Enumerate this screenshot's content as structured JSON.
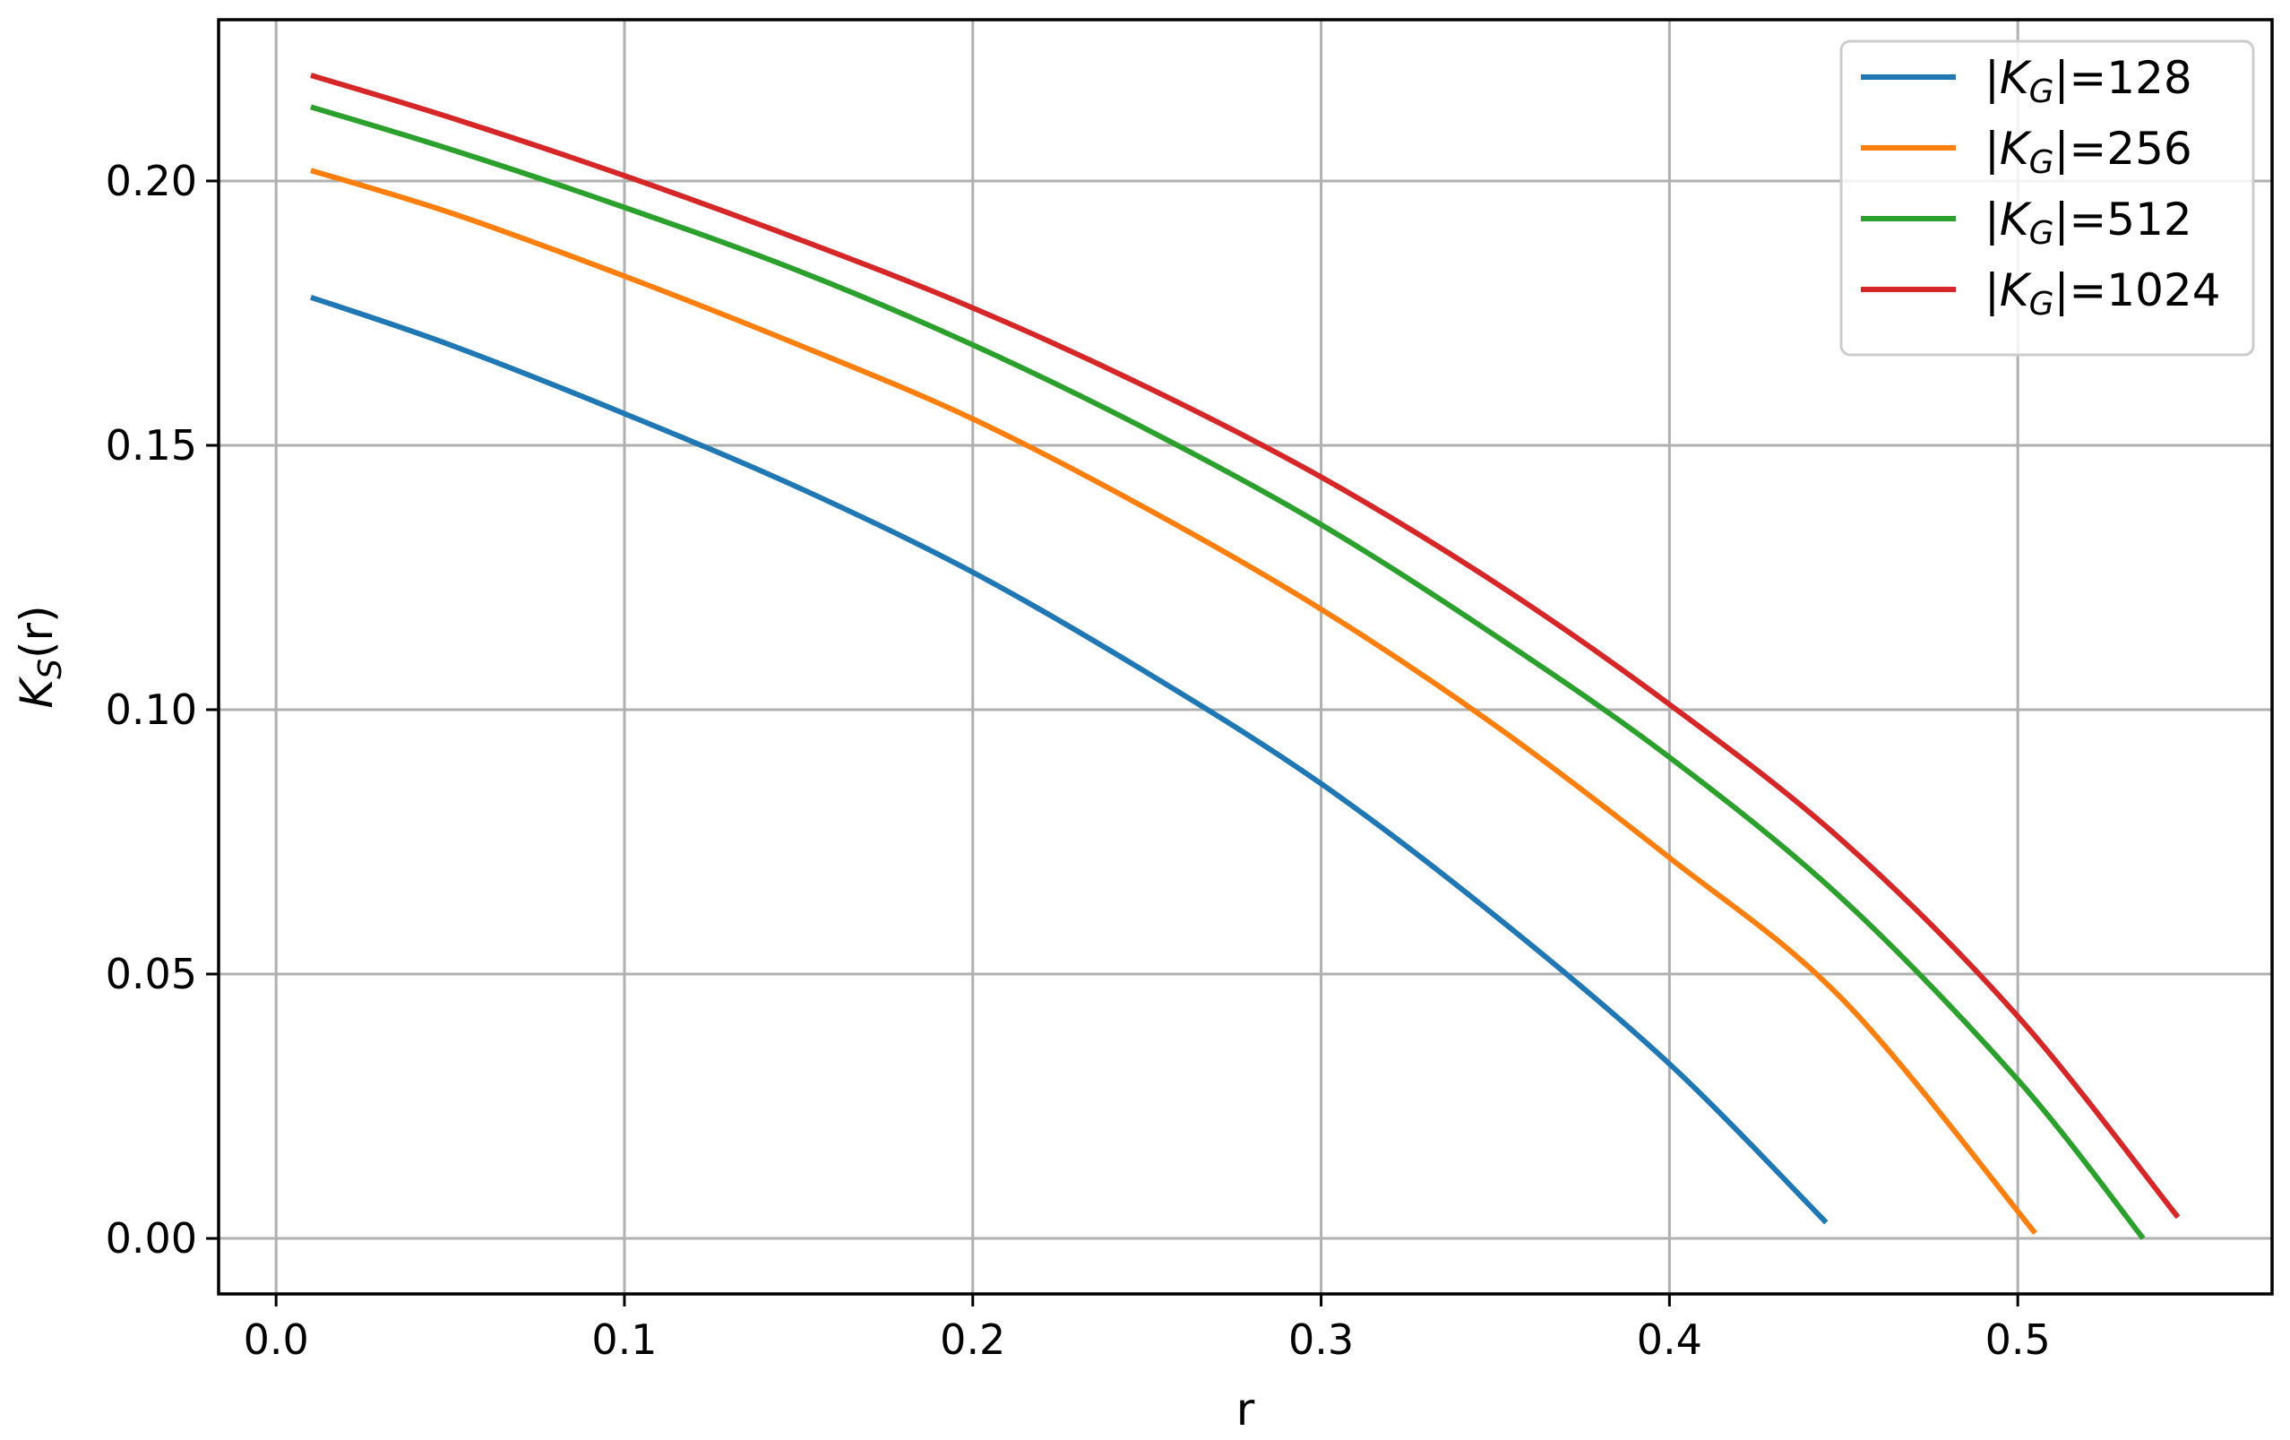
{
  "chart_data": {
    "type": "line",
    "xlabel": "r",
    "ylabel": "K_S(r)",
    "ylabel_parts": {
      "main": "K",
      "sub": "S",
      "rest": "(r)"
    },
    "xlim": [
      -0.0165,
      0.573
    ],
    "ylim": [
      -0.0105,
      0.2305
    ],
    "xticks": [
      0.0,
      0.1,
      0.2,
      0.3,
      0.4,
      0.5
    ],
    "xtick_labels": [
      "0.0",
      "0.1",
      "0.2",
      "0.3",
      "0.4",
      "0.5"
    ],
    "yticks": [
      0.0,
      0.05,
      0.1,
      0.15,
      0.2
    ],
    "ytick_labels": [
      "0.00",
      "0.05",
      "0.10",
      "0.15",
      "0.20"
    ],
    "grid": true,
    "legend_position": "top-right",
    "series": [
      {
        "name": "|K_G|=128",
        "legend": {
          "pre": "|",
          "main": "K",
          "sub": "G",
          "post": "|=128"
        },
        "color": "#1f77b4",
        "x": [
          0.01,
          0.05,
          0.1,
          0.15,
          0.2,
          0.25,
          0.3,
          0.35,
          0.4,
          0.445
        ],
        "y": [
          0.178,
          0.169,
          0.156,
          0.142,
          0.126,
          0.107,
          0.086,
          0.061,
          0.033,
          0.003
        ]
      },
      {
        "name": "|K_G|=256",
        "legend": {
          "pre": "|",
          "main": "K",
          "sub": "G",
          "post": "|=256"
        },
        "color": "#ff7f0e",
        "x": [
          0.01,
          0.05,
          0.1,
          0.15,
          0.2,
          0.25,
          0.3,
          0.35,
          0.4,
          0.45,
          0.505
        ],
        "y": [
          0.202,
          0.194,
          0.182,
          0.169,
          0.155,
          0.138,
          0.119,
          0.097,
          0.072,
          0.045,
          0.001
        ]
      },
      {
        "name": "|K_G|=512",
        "legend": {
          "pre": "|",
          "main": "K",
          "sub": "G",
          "post": "|=512"
        },
        "color": "#2ca02c",
        "x": [
          0.01,
          0.05,
          0.1,
          0.15,
          0.2,
          0.25,
          0.3,
          0.35,
          0.4,
          0.45,
          0.5,
          0.536
        ],
        "y": [
          0.214,
          0.206,
          0.195,
          0.183,
          0.169,
          0.153,
          0.135,
          0.114,
          0.091,
          0.064,
          0.03,
          0.0
        ]
      },
      {
        "name": "|K_G|=1024",
        "legend": {
          "pre": "|",
          "main": "K",
          "sub": "G",
          "post": "|=1024"
        },
        "color": "#d62728",
        "x": [
          0.01,
          0.05,
          0.1,
          0.15,
          0.2,
          0.25,
          0.3,
          0.35,
          0.4,
          0.45,
          0.5,
          0.546
        ],
        "y": [
          0.22,
          0.212,
          0.201,
          0.189,
          0.176,
          0.161,
          0.144,
          0.124,
          0.101,
          0.075,
          0.042,
          0.004
        ]
      }
    ]
  }
}
